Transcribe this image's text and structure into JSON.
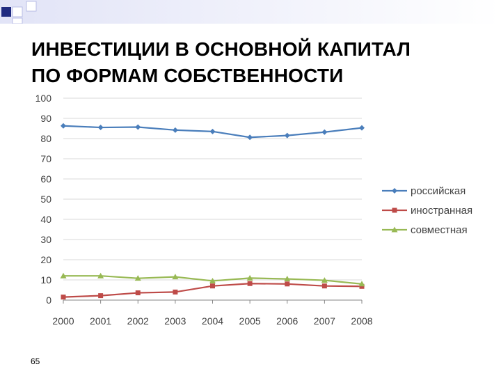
{
  "slide": {
    "title_line1": "ИНВЕСТИЦИИ В ОСНОВНОЙ КАПИТАЛ",
    "title_line2": "ПО ФОРМАМ СОБСТВЕННОСТИ",
    "page_number": "65"
  },
  "chart_data": {
    "type": "line",
    "title": "",
    "xlabel": "",
    "ylabel": "",
    "categories": [
      "2000",
      "2001",
      "2002",
      "2003",
      "2004",
      "2005",
      "2006",
      "2007",
      "2008"
    ],
    "ylim": [
      0,
      100
    ],
    "yticks": [
      "0",
      "10",
      "20",
      "30",
      "40",
      "50",
      "60",
      "70",
      "80",
      "90",
      "100"
    ],
    "grid": true,
    "legend_position": "right",
    "series": [
      {
        "name": "российская",
        "color": "#4a7ebb",
        "marker": "diamond",
        "values": [
          86.3,
          85.5,
          85.7,
          84.2,
          83.5,
          80.6,
          81.5,
          83.2,
          85.3
        ]
      },
      {
        "name": "иностранная",
        "color": "#be4b48",
        "marker": "square",
        "values": [
          1.5,
          2.2,
          3.6,
          4.0,
          7.0,
          8.2,
          8.0,
          7.0,
          6.8
        ]
      },
      {
        "name": "совместная",
        "color": "#98b954",
        "marker": "triangle",
        "values": [
          12.0,
          12.0,
          10.8,
          11.5,
          9.5,
          10.9,
          10.5,
          9.8,
          8.0
        ]
      }
    ]
  }
}
